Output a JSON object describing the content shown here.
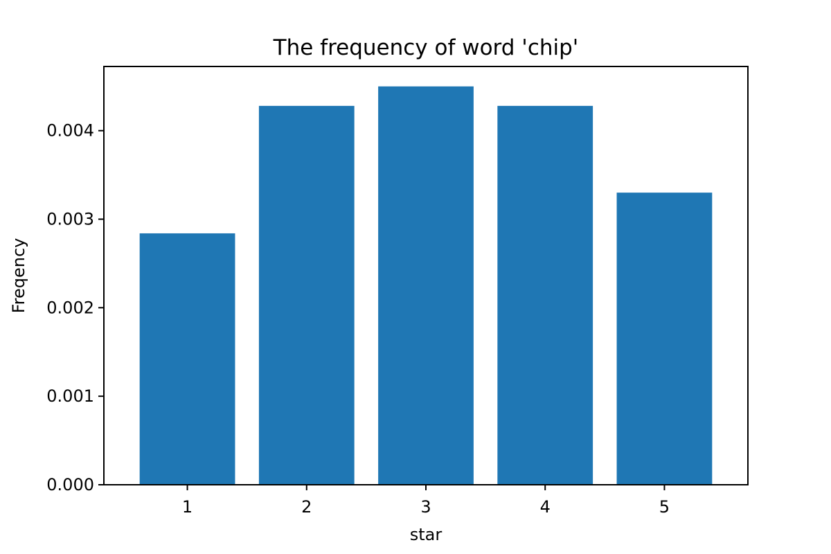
{
  "chart_data": {
    "type": "bar",
    "title": "The frequency of word 'chip'",
    "xlabel": "star",
    "ylabel": "Freqency",
    "categories": [
      "1",
      "2",
      "3",
      "4",
      "5"
    ],
    "values": [
      0.00284,
      0.00428,
      0.0045,
      0.00428,
      0.0033
    ],
    "ylim": [
      0,
      0.004725
    ],
    "yticks": [
      "0.000",
      "0.001",
      "0.002",
      "0.003",
      "0.004"
    ],
    "ytick_values": [
      0,
      0.001,
      0.002,
      0.003,
      0.004
    ],
    "grid": false,
    "bar_color": "#1f77b4"
  }
}
